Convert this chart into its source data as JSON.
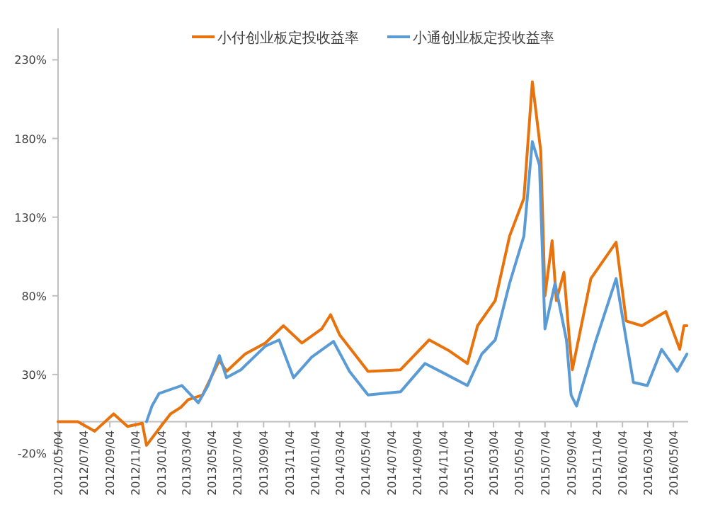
{
  "chart_data": {
    "type": "line",
    "legend": "top",
    "grid": false,
    "marker": "none",
    "line_style": "solid",
    "ylim": [
      -20,
      250
    ],
    "yticks": [
      {
        "value": -20,
        "label": "-20%"
      },
      {
        "value": 30,
        "label": "30%"
      },
      {
        "value": 80,
        "label": "80%"
      },
      {
        "value": 130,
        "label": "130%"
      },
      {
        "value": 180,
        "label": "180%"
      },
      {
        "value": 230,
        "label": "230%"
      }
    ],
    "xlim": [
      "2012-05-04",
      "2016-06-08"
    ],
    "xticks": [
      {
        "value": "2012-05-04",
        "label": "2012/05/04"
      },
      {
        "value": "2012-07-04",
        "label": "2012/07/04"
      },
      {
        "value": "2012-09-04",
        "label": "2012/09/04"
      },
      {
        "value": "2012-11-04",
        "label": "2012/11/04"
      },
      {
        "value": "2013-01-04",
        "label": "2013/01/04"
      },
      {
        "value": "2013-03-04",
        "label": "2013/03/04"
      },
      {
        "value": "2013-05-04",
        "label": "2013/05/04"
      },
      {
        "value": "2013-07-04",
        "label": "2013/07/04"
      },
      {
        "value": "2013-09-04",
        "label": "2013/09/04"
      },
      {
        "value": "2013-11-04",
        "label": "2013/11/04"
      },
      {
        "value": "2014-01-04",
        "label": "2014/01/04"
      },
      {
        "value": "2014-03-04",
        "label": "2014/03/04"
      },
      {
        "value": "2014-05-04",
        "label": "2014/05/04"
      },
      {
        "value": "2014-07-04",
        "label": "2014/07/04"
      },
      {
        "value": "2014-09-04",
        "label": "2014/09/04"
      },
      {
        "value": "2014-11-04",
        "label": "2014/11/04"
      },
      {
        "value": "2015-01-04",
        "label": "2015/01/04"
      },
      {
        "value": "2015-03-04",
        "label": "2015/03/04"
      },
      {
        "value": "2015-05-04",
        "label": "2015/05/04"
      },
      {
        "value": "2015-07-04",
        "label": "2015/07/04"
      },
      {
        "value": "2015-09-04",
        "label": "2015/09/04"
      },
      {
        "value": "2015-11-04",
        "label": "2015/11/04"
      },
      {
        "value": "2016-01-04",
        "label": "2016/01/04"
      },
      {
        "value": "2016-03-04",
        "label": "2016/03/04"
      },
      {
        "value": "2016-05-04",
        "label": "2016/05/04"
      }
    ],
    "series": [
      {
        "name": "小付创业板定投收益率",
        "color": "#e8720c",
        "x": [
          "2012-05-04",
          "2012-06-20",
          "2012-07-30",
          "2012-09-13",
          "2012-10-16",
          "2012-11-20",
          "2012-11-30",
          "2013-01-03",
          "2013-01-26",
          "2013-02-19",
          "2013-03-09",
          "2013-04-12",
          "2013-05-22",
          "2013-06-08",
          "2013-07-22",
          "2013-09-08",
          "2013-10-21",
          "2013-12-04",
          "2014-01-20",
          "2014-02-10",
          "2014-03-04",
          "2014-05-10",
          "2014-07-26",
          "2014-10-02",
          "2014-11-19",
          "2015-01-01",
          "2015-01-25",
          "2015-03-08",
          "2015-04-11",
          "2015-05-15",
          "2015-06-04",
          "2015-06-24",
          "2015-07-04",
          "2015-07-21",
          "2015-07-31",
          "2015-08-18",
          "2015-08-31",
          "2015-09-07",
          "2015-10-21",
          "2015-12-20",
          "2016-01-13",
          "2016-02-19",
          "2016-04-16",
          "2016-05-19",
          "2016-05-29",
          "2016-06-05"
        ],
        "values": [
          0,
          0,
          -6,
          5,
          -3,
          -1,
          -15,
          -3,
          5,
          9,
          14,
          17,
          39,
          32,
          43,
          50,
          61,
          50,
          59,
          68,
          55,
          32,
          33,
          52,
          45,
          37,
          61,
          77,
          118,
          142,
          216,
          172,
          80,
          115,
          77,
          95,
          52,
          33,
          91,
          114,
          64,
          61,
          70,
          46,
          61,
          61
        ]
      },
      {
        "name": "小通创业板定投收益率",
        "color": "#5b9bd5",
        "x": [
          "2012-11-30",
          "2012-12-13",
          "2012-12-30",
          "2013-02-22",
          "2013-04-02",
          "2013-04-25",
          "2013-05-22",
          "2013-06-08",
          "2013-07-12",
          "2013-09-08",
          "2013-10-11",
          "2013-11-14",
          "2013-12-27",
          "2014-02-17",
          "2014-03-27",
          "2014-05-10",
          "2014-07-26",
          "2014-09-22",
          "2014-11-12",
          "2015-01-01",
          "2015-02-04",
          "2015-03-08",
          "2015-04-11",
          "2015-05-15",
          "2015-06-04",
          "2015-06-21",
          "2015-07-04",
          "2015-07-28",
          "2015-08-24",
          "2015-09-04",
          "2015-09-17",
          "2015-10-31",
          "2015-12-20",
          "2016-01-13",
          "2016-01-30",
          "2016-03-03",
          "2016-04-06",
          "2016-05-13",
          "2016-06-05"
        ],
        "values": [
          0,
          10,
          18,
          23,
          12,
          23,
          42,
          28,
          33,
          48,
          52,
          28,
          41,
          51,
          32,
          17,
          19,
          37,
          30,
          23,
          43,
          52,
          88,
          118,
          178,
          163,
          59,
          88,
          52,
          17,
          10,
          50,
          91,
          52,
          25,
          23,
          46,
          32,
          43
        ]
      }
    ]
  }
}
